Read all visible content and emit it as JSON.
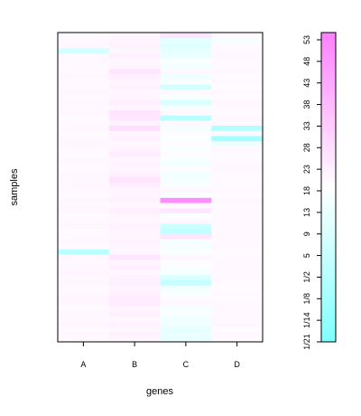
{
  "chart_data": {
    "type": "heatmap",
    "title": "",
    "xlabel": "genes",
    "ylabel": "samples",
    "x_categories": [
      "A",
      "B",
      "C",
      "D"
    ],
    "y_tick_labels_bottom_to_top": [
      "1/21",
      "1/14",
      "1/8",
      "1/2",
      "5",
      "9",
      "13",
      "18",
      "23",
      "28",
      "33",
      "38",
      "43",
      "48",
      "53"
    ],
    "n_rows": 60,
    "color_scale": {
      "low_color": "#80ffff",
      "mid_color": "#ffffff",
      "high_color": "#ff80ff",
      "min": -1,
      "max": 1
    },
    "values_bottom_to_top": [
      [
        0.05,
        0.08,
        -0.18,
        0.04
      ],
      [
        0.06,
        0.1,
        -0.15,
        0.05
      ],
      [
        0.04,
        0.07,
        -0.2,
        0.03
      ],
      [
        0.08,
        0.11,
        -0.12,
        0.06
      ],
      [
        0.05,
        0.06,
        -0.1,
        0.05
      ],
      [
        0.07,
        0.12,
        -0.05,
        0.04
      ],
      [
        0.03,
        0.09,
        -0.08,
        0.06
      ],
      [
        0.06,
        0.14,
        0.05,
        0.05
      ],
      [
        0.09,
        0.15,
        0.04,
        0.04
      ],
      [
        0.05,
        0.11,
        -0.06,
        0.05
      ],
      [
        0.04,
        0.09,
        -0.1,
        0.03
      ],
      [
        0.06,
        0.12,
        -0.45,
        0.04
      ],
      [
        0.05,
        0.1,
        -0.3,
        0.05
      ],
      [
        0.08,
        0.07,
        -0.08,
        0.06
      ],
      [
        0.06,
        0.13,
        -0.05,
        0.04
      ],
      [
        0.05,
        0.09,
        0.02,
        0.05
      ],
      [
        0.07,
        0.2,
        0.06,
        0.04
      ],
      [
        -0.55,
        0.06,
        -0.04,
        0.03
      ],
      [
        0.04,
        0.08,
        -0.08,
        0.05
      ],
      [
        0.06,
        0.1,
        -0.06,
        0.04
      ],
      [
        0.05,
        0.07,
        0.22,
        0.06
      ],
      [
        0.03,
        0.09,
        -0.5,
        0.05
      ],
      [
        0.06,
        0.11,
        -0.4,
        0.04
      ],
      [
        0.05,
        0.06,
        0.05,
        0.05
      ],
      [
        0.04,
        0.08,
        -0.05,
        0.05
      ],
      [
        0.07,
        0.12,
        0.18,
        0.04
      ],
      [
        0.05,
        0.07,
        0.04,
        0.05
      ],
      [
        0.06,
        0.1,
        0.9,
        0.06
      ],
      [
        0.04,
        0.08,
        -0.04,
        0.03
      ],
      [
        0.05,
        0.09,
        0.06,
        0.05
      ],
      [
        0.07,
        0.14,
        -0.05,
        0.04
      ],
      [
        0.05,
        0.22,
        -0.08,
        0.05
      ],
      [
        0.06,
        0.12,
        -0.12,
        0.04
      ],
      [
        0.04,
        0.08,
        0.03,
        0.06
      ],
      [
        0.05,
        0.1,
        -0.1,
        0.05
      ],
      [
        0.06,
        0.07,
        -0.06,
        0.03
      ],
      [
        0.04,
        0.15,
        0.02,
        0.04
      ],
      [
        0.05,
        0.09,
        -0.05,
        0.05
      ],
      [
        0.07,
        0.06,
        0.03,
        -0.15
      ],
      [
        0.05,
        0.11,
        -0.04,
        -0.7
      ],
      [
        0.04,
        0.08,
        0.02,
        0.05
      ],
      [
        0.06,
        0.25,
        -0.08,
        -0.6
      ],
      [
        0.05,
        0.1,
        0.04,
        0.06
      ],
      [
        0.04,
        0.18,
        -0.55,
        0.05
      ],
      [
        0.06,
        0.22,
        0.05,
        0.04
      ],
      [
        0.05,
        0.08,
        -0.08,
        0.05
      ],
      [
        0.07,
        0.12,
        -0.3,
        0.06
      ],
      [
        0.05,
        0.09,
        -0.06,
        0.04
      ],
      [
        0.06,
        0.07,
        0.04,
        0.05
      ],
      [
        0.04,
        0.1,
        -0.35,
        0.03
      ],
      [
        0.05,
        0.08,
        -0.05,
        0.05
      ],
      [
        0.06,
        0.13,
        -0.12,
        0.04
      ],
      [
        0.05,
        0.2,
        0.05,
        0.06
      ],
      [
        0.04,
        0.09,
        -0.1,
        0.05
      ],
      [
        0.06,
        0.07,
        -0.04,
        0.04
      ],
      [
        0.05,
        0.12,
        -0.15,
        0.05
      ],
      [
        -0.35,
        0.06,
        -0.2,
        0.05
      ],
      [
        0.06,
        0.1,
        -0.25,
        0.04
      ],
      [
        0.05,
        0.08,
        -0.2,
        -0.08
      ],
      [
        0.04,
        0.07,
        0.2,
        0.05
      ]
    ]
  }
}
